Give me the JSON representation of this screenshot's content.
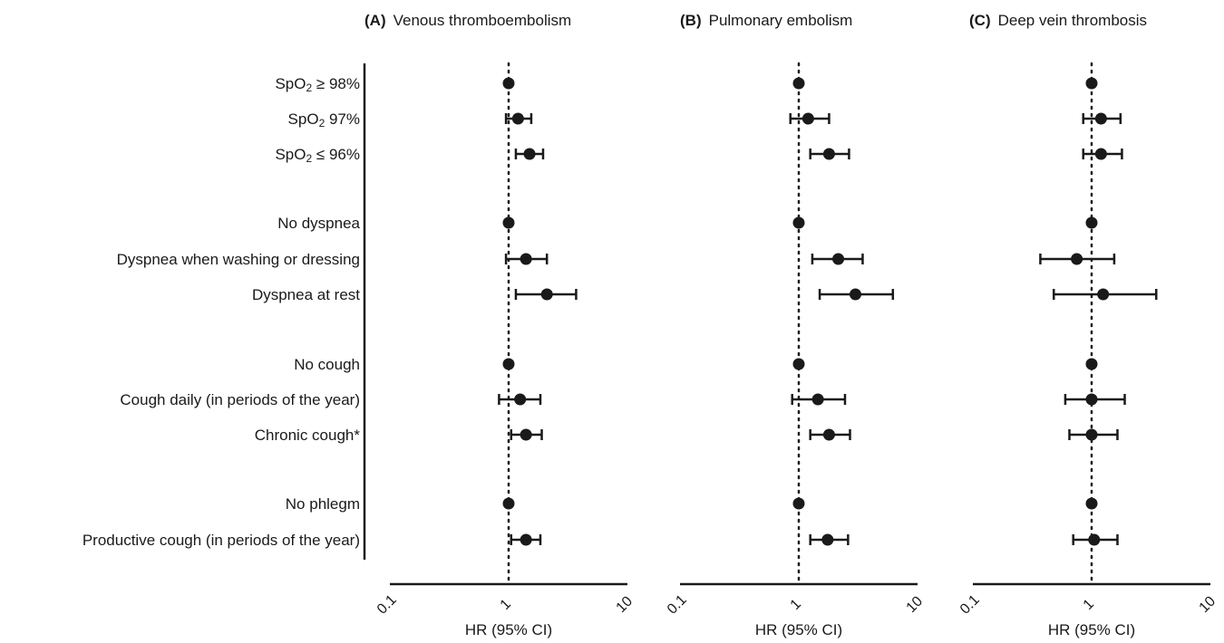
{
  "chart_data": {
    "type": "scatter",
    "subtype": "forest-plot",
    "x_scale": "log",
    "xlim": [
      0.1,
      10
    ],
    "x_ticks": [
      "0.1",
      "1",
      "10"
    ],
    "reference_line": 1,
    "row_labels": [
      [
        "SpO",
        "2",
        " ≥ 98%"
      ],
      [
        "SpO",
        "2",
        " 97%"
      ],
      [
        "SpO",
        "2",
        " ≤ 96%"
      ],
      [
        "No dyspnea"
      ],
      [
        "Dyspnea when washing or dressing"
      ],
      [
        "Dyspnea at rest"
      ],
      [
        "No cough"
      ],
      [
        "Cough daily (in periods of the year)"
      ],
      [
        "Chronic cough*"
      ],
      [
        "No phlegm"
      ],
      [
        "Productive cough (in periods of the year)"
      ]
    ],
    "panels": [
      {
        "letter": "(A)",
        "title": "Venous thromboembolism",
        "xlabel": "HR (95% CI)",
        "hr": [
          1,
          1.2,
          1.5,
          1,
          1.4,
          2.1,
          1,
          1.25,
          1.4,
          1,
          1.4
        ],
        "lower": [
          null,
          0.95,
          1.15,
          null,
          0.95,
          1.15,
          null,
          0.83,
          1.05,
          null,
          1.05
        ],
        "upper": [
          null,
          1.55,
          1.95,
          null,
          2.1,
          3.7,
          null,
          1.85,
          1.9,
          null,
          1.85
        ]
      },
      {
        "letter": "(B)",
        "title": "Pulmonary embolism",
        "xlabel": "HR (95% CI)",
        "hr": [
          1,
          1.2,
          1.8,
          1,
          2.15,
          3.0,
          1,
          1.45,
          1.8,
          1,
          1.75
        ],
        "lower": [
          null,
          0.85,
          1.25,
          null,
          1.3,
          1.5,
          null,
          0.88,
          1.25,
          null,
          1.25
        ],
        "upper": [
          null,
          1.8,
          2.65,
          null,
          3.45,
          6.2,
          null,
          2.45,
          2.7,
          null,
          2.6
        ]
      },
      {
        "letter": "(C)",
        "title": "Deep vein thrombosis",
        "xlabel": "HR (95% CI)",
        "hr": [
          1,
          1.2,
          1.2,
          1,
          0.75,
          1.25,
          1,
          1.0,
          1.0,
          1,
          1.05
        ],
        "lower": [
          null,
          0.85,
          0.85,
          null,
          0.37,
          0.48,
          null,
          0.6,
          0.65,
          null,
          0.7
        ],
        "upper": [
          null,
          1.75,
          1.8,
          null,
          1.55,
          3.5,
          null,
          1.9,
          1.65,
          null,
          1.65
        ]
      }
    ]
  }
}
